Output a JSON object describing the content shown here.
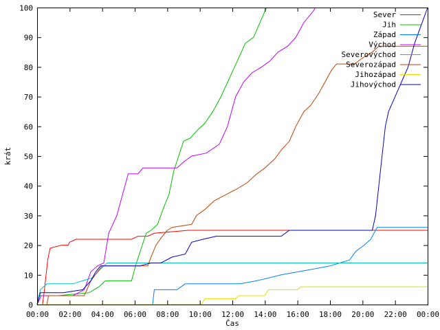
{
  "chart_data": {
    "type": "line",
    "title": "",
    "xlabel": "Čas",
    "ylabel": "krát",
    "xlim": [
      0,
      24
    ],
    "ylim": [
      0,
      100
    ],
    "x_tick_values": [
      0,
      2,
      4,
      6,
      8,
      10,
      12,
      14,
      16,
      18,
      20,
      22,
      24
    ],
    "x_ticks": [
      "00:00",
      "02:00",
      "04:00",
      "06:00",
      "08:00",
      "10:00",
      "12:00",
      "14:00",
      "16:00",
      "18:00",
      "20:00",
      "22:00",
      "00:00"
    ],
    "y_ticks": [
      0,
      10,
      20,
      30,
      40,
      50,
      60,
      70,
      80,
      90,
      100
    ],
    "grid": false,
    "legend_position": "top-right",
    "series": [
      {
        "name": "Sever",
        "color": "#ff0000",
        "points": [
          [
            0,
            0
          ],
          [
            0.33,
            0
          ],
          [
            0.45,
            5
          ],
          [
            0.55,
            10
          ],
          [
            0.65,
            15
          ],
          [
            0.8,
            19
          ],
          [
            1.5,
            20
          ],
          [
            1.9,
            20
          ],
          [
            2.0,
            21
          ],
          [
            2.4,
            22
          ],
          [
            5.8,
            22
          ],
          [
            6.2,
            23
          ],
          [
            6.8,
            23
          ],
          [
            7.2,
            24
          ],
          [
            9.3,
            25
          ],
          [
            24,
            25
          ]
        ]
      },
      {
        "name": "Jih",
        "color": "#00c000",
        "points": [
          [
            0,
            0
          ],
          [
            0.1,
            3
          ],
          [
            1.3,
            3
          ],
          [
            3.2,
            4
          ],
          [
            3.8,
            6
          ],
          [
            4.2,
            8
          ],
          [
            5.8,
            8
          ],
          [
            6.1,
            14
          ],
          [
            6.4,
            19
          ],
          [
            6.7,
            24
          ],
          [
            7.0,
            25
          ],
          [
            7.4,
            27
          ],
          [
            7.8,
            33
          ],
          [
            8.1,
            37
          ],
          [
            8.4,
            45
          ],
          [
            8.7,
            50
          ],
          [
            9.0,
            55
          ],
          [
            9.4,
            56
          ],
          [
            9.9,
            59
          ],
          [
            10.3,
            61
          ],
          [
            10.8,
            65
          ],
          [
            11.3,
            70
          ],
          [
            11.8,
            76
          ],
          [
            12.3,
            82
          ],
          [
            12.8,
            88
          ],
          [
            13.3,
            90
          ],
          [
            13.7,
            95
          ],
          [
            14.1,
            100
          ]
        ]
      },
      {
        "name": "Západ",
        "color": "#0080ff",
        "points": [
          [
            0,
            0
          ],
          [
            7.1,
            0
          ],
          [
            7.2,
            5
          ],
          [
            8.6,
            5
          ],
          [
            9.1,
            7
          ],
          [
            12.5,
            7
          ],
          [
            13.5,
            8
          ],
          [
            15.0,
            10
          ],
          [
            17.0,
            12
          ],
          [
            18.0,
            13
          ],
          [
            19.2,
            15
          ],
          [
            19.6,
            18
          ],
          [
            20.1,
            20
          ],
          [
            20.5,
            22
          ],
          [
            20.7,
            24
          ],
          [
            20.9,
            26
          ],
          [
            24,
            26
          ]
        ]
      },
      {
        "name": "Východ",
        "color": "#c000ff",
        "points": [
          [
            0,
            0
          ],
          [
            0.25,
            3
          ],
          [
            2.2,
            3
          ],
          [
            2.9,
            5
          ],
          [
            3.1,
            8
          ],
          [
            3.3,
            11
          ],
          [
            3.7,
            13
          ],
          [
            4.1,
            14
          ],
          [
            4.4,
            24
          ],
          [
            4.9,
            30
          ],
          [
            5.3,
            38
          ],
          [
            5.6,
            44
          ],
          [
            6.2,
            44
          ],
          [
            6.5,
            46
          ],
          [
            8.6,
            46
          ],
          [
            9.0,
            48
          ],
          [
            9.5,
            50
          ],
          [
            10.4,
            51
          ],
          [
            11.2,
            54
          ],
          [
            11.7,
            60
          ],
          [
            12.2,
            70
          ],
          [
            12.7,
            75
          ],
          [
            13.2,
            78
          ],
          [
            13.8,
            80
          ],
          [
            14.3,
            82
          ],
          [
            14.8,
            85
          ],
          [
            15.4,
            87
          ],
          [
            15.9,
            90
          ],
          [
            16.4,
            95
          ],
          [
            17.0,
            99
          ],
          [
            17.1,
            100
          ]
        ]
      },
      {
        "name": "Severovýchod",
        "color": "#00c0c0",
        "points": [
          [
            0,
            0
          ],
          [
            0.2,
            5
          ],
          [
            0.6,
            7
          ],
          [
            2.2,
            7
          ],
          [
            2.8,
            8
          ],
          [
            3.4,
            9
          ],
          [
            3.9,
            12
          ],
          [
            4.3,
            14
          ],
          [
            24,
            14
          ]
        ]
      },
      {
        "name": "Severozápad",
        "color": "#c04000",
        "points": [
          [
            0,
            0
          ],
          [
            0.6,
            0
          ],
          [
            0.7,
            3
          ],
          [
            2.9,
            3
          ],
          [
            3.3,
            8
          ],
          [
            3.7,
            11
          ],
          [
            4.0,
            13
          ],
          [
            6.8,
            13
          ],
          [
            7.0,
            16
          ],
          [
            7.3,
            20
          ],
          [
            7.7,
            23
          ],
          [
            8.0,
            25
          ],
          [
            8.3,
            26
          ],
          [
            9.5,
            27
          ],
          [
            9.8,
            30
          ],
          [
            10.3,
            32
          ],
          [
            10.9,
            35
          ],
          [
            11.6,
            37
          ],
          [
            12.3,
            39
          ],
          [
            12.9,
            41
          ],
          [
            13.5,
            44
          ],
          [
            14.0,
            46
          ],
          [
            14.6,
            49
          ],
          [
            15.0,
            52
          ],
          [
            15.5,
            55
          ],
          [
            15.9,
            60
          ],
          [
            16.4,
            65
          ],
          [
            16.8,
            67
          ],
          [
            17.3,
            71
          ],
          [
            17.7,
            75
          ],
          [
            18.1,
            79
          ],
          [
            18.4,
            81
          ],
          [
            19.5,
            81
          ],
          [
            20.0,
            83
          ],
          [
            20.6,
            85
          ],
          [
            21.0,
            87
          ],
          [
            24,
            87
          ]
        ]
      },
      {
        "name": "Jihozápad",
        "color": "#e0e000",
        "points": [
          [
            0,
            0
          ],
          [
            10.1,
            0
          ],
          [
            10.3,
            2
          ],
          [
            12.2,
            2
          ],
          [
            12.4,
            3
          ],
          [
            14.0,
            3
          ],
          [
            14.2,
            5
          ],
          [
            16.0,
            5
          ],
          [
            16.2,
            6
          ],
          [
            24,
            6
          ]
        ]
      },
      {
        "name": "Jihovýchod",
        "color": "#0000c0",
        "points": [
          [
            0,
            0
          ],
          [
            0.2,
            4
          ],
          [
            1.6,
            4
          ],
          [
            2.8,
            5
          ],
          [
            3.3,
            8
          ],
          [
            3.6,
            11
          ],
          [
            3.9,
            13
          ],
          [
            6.3,
            13
          ],
          [
            7.0,
            14
          ],
          [
            7.6,
            14
          ],
          [
            8.3,
            16
          ],
          [
            9.1,
            17
          ],
          [
            9.5,
            21
          ],
          [
            10.2,
            22
          ],
          [
            11.0,
            23
          ],
          [
            15.0,
            23
          ],
          [
            15.5,
            25
          ],
          [
            20.6,
            25
          ],
          [
            20.8,
            30
          ],
          [
            21.0,
            40
          ],
          [
            21.2,
            50
          ],
          [
            21.4,
            60
          ],
          [
            21.6,
            65
          ],
          [
            22.0,
            70
          ],
          [
            22.4,
            75
          ],
          [
            22.8,
            80
          ],
          [
            23.2,
            88
          ],
          [
            23.6,
            94
          ],
          [
            24.0,
            100
          ]
        ]
      }
    ]
  }
}
